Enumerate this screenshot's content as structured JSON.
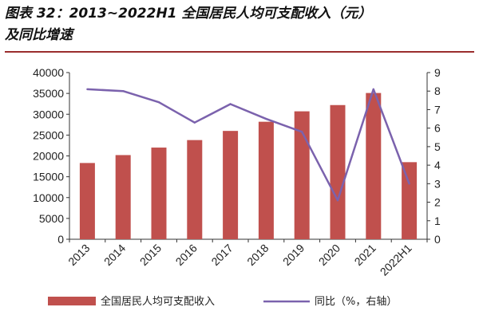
{
  "title": {
    "line1": "图表 32：2013~2022H1 全国居民人均可支配收入（元）",
    "line2": "及同比增速"
  },
  "colors": {
    "bar": "#c0504d",
    "line": "#7b62ad",
    "axis": "#333333",
    "title_rule": "#9a2d2d"
  },
  "chart_data": {
    "type": "bar",
    "categories": [
      "2013",
      "2014",
      "2015",
      "2016",
      "2017",
      "2018",
      "2019",
      "2020",
      "2021",
      "2022H1"
    ],
    "series": [
      {
        "name": "全国居民人均可支配收入",
        "type": "bar",
        "axis": "left",
        "values": [
          18300,
          20200,
          22000,
          23800,
          26000,
          28200,
          30700,
          32200,
          35100,
          18500
        ]
      },
      {
        "name": "同比（%，右轴）",
        "type": "line",
        "axis": "right",
        "values": [
          8.1,
          8.0,
          7.4,
          6.3,
          7.3,
          6.5,
          5.8,
          2.1,
          8.1,
          3.0
        ]
      }
    ],
    "y_left": {
      "min": 0,
      "max": 40000,
      "ticks": [
        "0",
        "5000",
        "10000",
        "15000",
        "20000",
        "25000",
        "30000",
        "35000",
        "40000"
      ]
    },
    "y_right": {
      "min": 0,
      "max": 9,
      "ticks": [
        "0",
        "1",
        "2",
        "3",
        "4",
        "5",
        "6",
        "7",
        "8",
        "9"
      ]
    },
    "legend_position": "bottom",
    "grid": false
  }
}
